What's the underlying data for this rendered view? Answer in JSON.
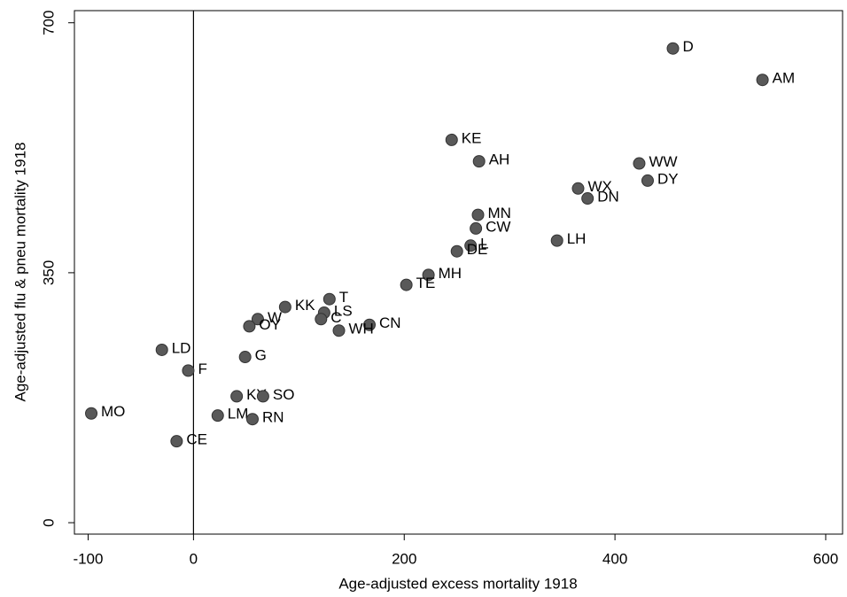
{
  "chart_data": {
    "type": "scatter",
    "x_label": "Age-adjusted excess mortality 1918",
    "y_label": "Age-adjusted flu & pneu mortality 1918",
    "labels": [
      "D",
      "AM",
      "KE",
      "AH",
      "WW",
      "DY",
      "WX",
      "DN",
      "MN",
      "CW",
      "LH",
      "L",
      "DE",
      "MH",
      "TE",
      "T",
      "KK",
      "LS",
      "W",
      "C",
      "OY",
      "CN",
      "WH",
      "LD",
      "G",
      "F",
      "KY",
      "SO",
      "MO",
      "LM",
      "RN",
      "CE"
    ],
    "x": [
      455,
      540,
      245,
      271,
      423,
      431,
      365,
      374,
      270,
      268,
      345,
      263,
      250,
      223,
      202,
      129,
      87,
      124,
      61,
      121,
      53,
      167,
      138,
      -30,
      49,
      -5,
      41,
      66,
      -97,
      23,
      56,
      -16
    ],
    "y": [
      664,
      620,
      536,
      506,
      503,
      479,
      468,
      454,
      431,
      412,
      395,
      388,
      380,
      347,
      333,
      313,
      302,
      294,
      285,
      285,
      275,
      277,
      269,
      242,
      232,
      213,
      177,
      177,
      153,
      150,
      145,
      114
    ],
    "color": "#595959",
    "xlim": [
      -113,
      616
    ],
    "ylim": [
      -16,
      717
    ],
    "xticks": [
      -100,
      0,
      200,
      400,
      600
    ],
    "yticks": [
      0,
      350,
      700
    ],
    "xline": 0
  }
}
